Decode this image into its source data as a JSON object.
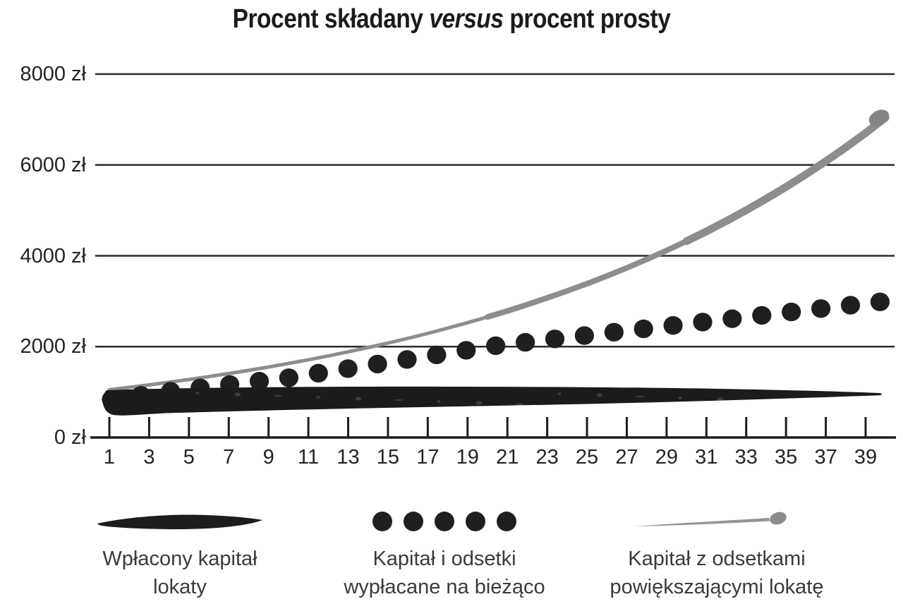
{
  "title": {
    "pre": "Procent składany ",
    "emphasis": "versus",
    "post": " procent prosty"
  },
  "legend": {
    "items": [
      {
        "line1": "Wpłacony kapitał",
        "line2": "lokaty"
      },
      {
        "line1": "Kapitał i odsetki",
        "line2": "wypłacane na bieżąco"
      },
      {
        "line1": "Kapitał z odsetkami",
        "line2": "powiększającymi lokatę"
      }
    ]
  },
  "chart_data": {
    "type": "line",
    "title": "Procent składany versus procent prosty",
    "xlabel": "",
    "ylabel": "",
    "x_range": [
      1,
      40
    ],
    "x_ticks": [
      1,
      3,
      5,
      7,
      9,
      11,
      13,
      15,
      17,
      19,
      21,
      23,
      25,
      27,
      29,
      31,
      33,
      35,
      37,
      39
    ],
    "y_range": [
      0,
      8000
    ],
    "y_ticks": [
      0,
      2000,
      4000,
      6000,
      8000
    ],
    "y_tick_labels": [
      "0 zł",
      "2000 zł",
      "4000 zł",
      "6000 zł",
      "8000 zł"
    ],
    "currency": "zł",
    "grid": "horizontal",
    "legend_position": "bottom",
    "years": [
      1,
      2,
      3,
      4,
      5,
      6,
      7,
      8,
      9,
      10,
      11,
      12,
      13,
      14,
      15,
      16,
      17,
      18,
      19,
      20,
      21,
      22,
      23,
      24,
      25,
      26,
      27,
      28,
      29,
      30,
      31,
      32,
      33,
      34,
      35,
      36,
      37,
      38,
      39,
      40
    ],
    "series": [
      {
        "name": "Wpłacony kapitał lokaty",
        "style": "thick-brush-line",
        "color": "#1b1b1b",
        "values": [
          1000,
          1000,
          1000,
          1000,
          1000,
          1000,
          1000,
          1000,
          1000,
          1000,
          1000,
          1000,
          1000,
          1000,
          1000,
          1000,
          1000,
          1000,
          1000,
          1000,
          1000,
          1000,
          1000,
          1000,
          1000,
          1000,
          1000,
          1000,
          1000,
          1000,
          1000,
          1000,
          1000,
          1000,
          1000,
          1000,
          1000,
          1000,
          1000,
          1000
        ]
      },
      {
        "name": "Kapitał i odsetki wypłacane na bieżąco",
        "style": "dots",
        "color": "#1f1f1f",
        "values": [
          1050,
          1100,
          1150,
          1200,
          1250,
          1300,
          1350,
          1400,
          1450,
          1500,
          1550,
          1600,
          1650,
          1700,
          1750,
          1800,
          1850,
          1900,
          1950,
          2000,
          2050,
          2100,
          2150,
          2200,
          2250,
          2300,
          2350,
          2400,
          2450,
          2500,
          2550,
          2600,
          2650,
          2700,
          2750,
          2800,
          2850,
          2900,
          2950,
          3000
        ]
      },
      {
        "name": "Kapitał z odsetkami powiększającymi lokatę",
        "style": "brush-curve",
        "color": "#8d8d8d",
        "values": [
          1050,
          1103,
          1158,
          1216,
          1276,
          1340,
          1407,
          1477,
          1551,
          1629,
          1710,
          1796,
          1886,
          1980,
          2079,
          2183,
          2292,
          2407,
          2527,
          2653,
          2786,
          2925,
          3072,
          3225,
          3386,
          3556,
          3733,
          3920,
          4116,
          4322,
          4538,
          4765,
          5003,
          5253,
          5516,
          5792,
          6081,
          6385,
          6705,
          7040
        ]
      }
    ]
  }
}
